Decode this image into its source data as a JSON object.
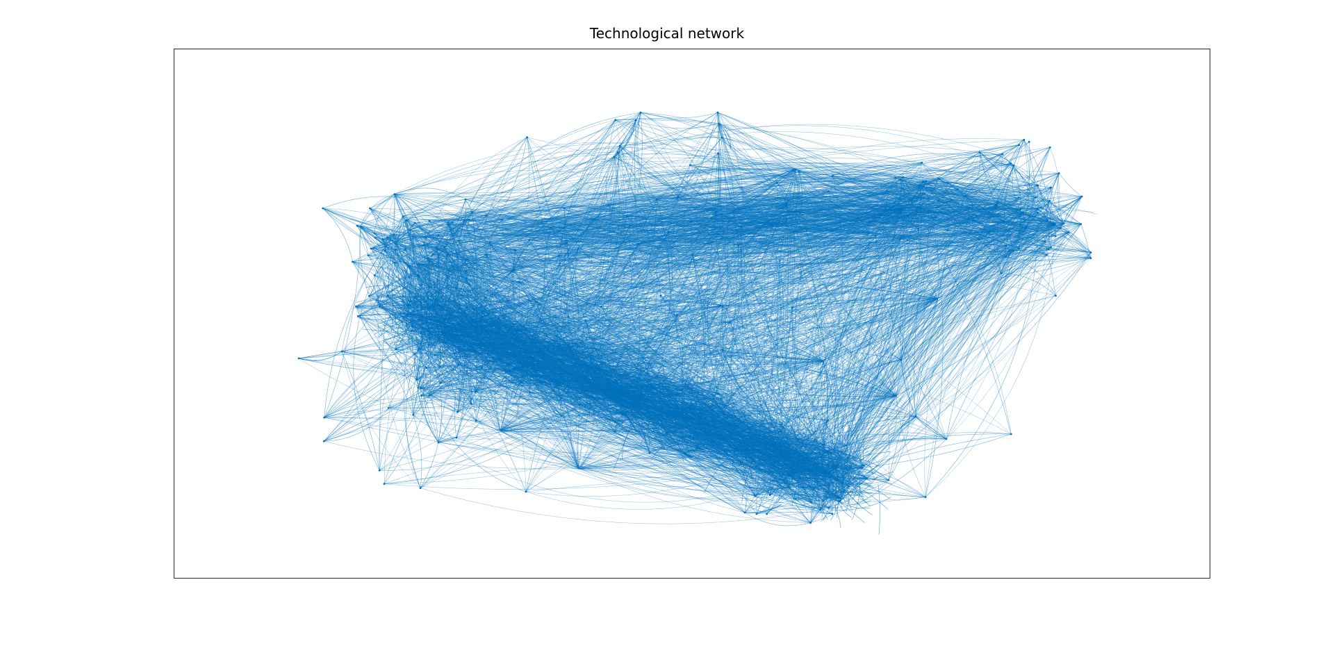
{
  "figure": {
    "title": "Technological network",
    "edge_color": "#0072bd",
    "node_color": "#0072bd",
    "axes_frame_color": "#262626",
    "background": "#ffffff"
  }
}
